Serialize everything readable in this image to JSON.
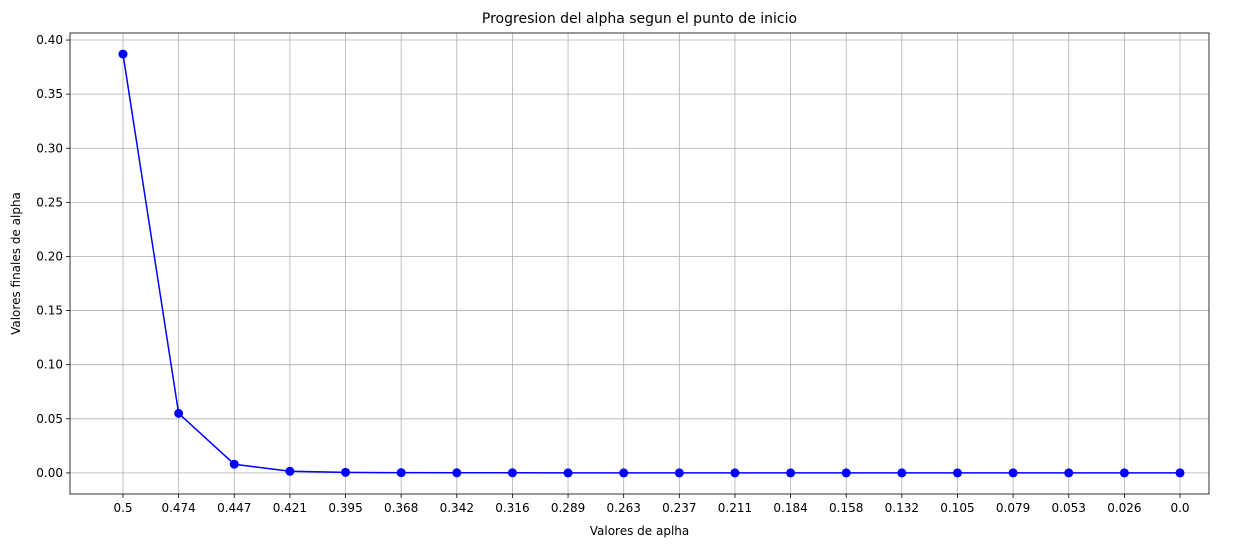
{
  "chart_data": {
    "type": "line",
    "title": "Progresion del alpha segun el punto de inicio",
    "xlabel": "Valores de aplha",
    "ylabel": "Valores finales de alpha",
    "categories": [
      "0.5",
      "0.474",
      "0.447",
      "0.421",
      "0.395",
      "0.368",
      "0.342",
      "0.316",
      "0.289",
      "0.263",
      "0.237",
      "0.211",
      "0.184",
      "0.158",
      "0.132",
      "0.105",
      "0.079",
      "0.053",
      "0.026",
      "0.0"
    ],
    "series": [
      {
        "values": [
          0.387,
          0.055,
          0.008,
          0.0015,
          0.0005,
          0.0002,
          0.0001,
          0.0001,
          0.0,
          0.0,
          0.0,
          0.0,
          0.0,
          0.0,
          0.0,
          0.0,
          0.0,
          0.0,
          0.0,
          0.0
        ],
        "color": "#0000ff",
        "marker": "circle"
      }
    ],
    "ylim": [
      -0.0195,
      0.4065
    ],
    "yticks": [
      "0.00",
      "0.05",
      "0.10",
      "0.15",
      "0.20",
      "0.25",
      "0.30",
      "0.35",
      "0.40"
    ],
    "grid": true,
    "legend": "none"
  }
}
